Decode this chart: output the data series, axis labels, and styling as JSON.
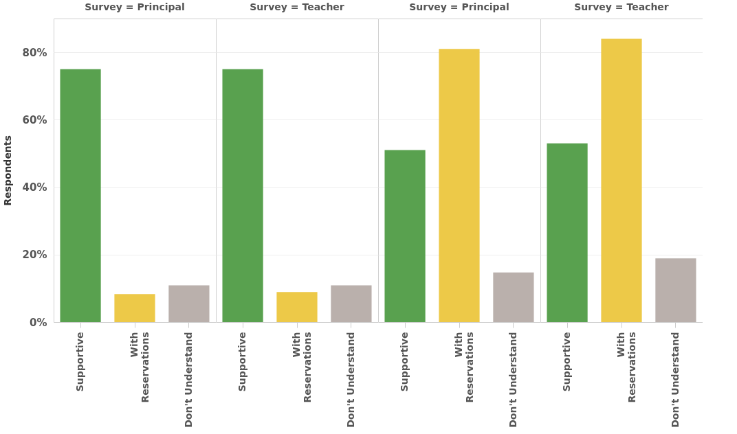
{
  "chart_data": [
    {
      "type": "bar",
      "title": "Survey = Principal",
      "ylabel": "Respondents",
      "categories": [
        "Supportive",
        "With\nReservations",
        "Don't Understand"
      ],
      "values": [
        75,
        8.3,
        10.9
      ],
      "colors": [
        "#59a14f",
        "#edc948",
        "#bab0ac"
      ],
      "ylim": [
        0,
        90
      ],
      "yticks": [
        {
          "value": 0,
          "label": "0%"
        },
        {
          "value": 20,
          "label": "20%"
        },
        {
          "value": 40,
          "label": "40%"
        },
        {
          "value": 60,
          "label": "60%"
        },
        {
          "value": 80,
          "label": "80%"
        }
      ],
      "grid": "y"
    },
    {
      "type": "bar",
      "title": "Survey = Teacher",
      "categories": [
        "Supportive",
        "With\nReservations",
        "Don't Understand"
      ],
      "values": [
        75,
        8.9,
        10.9
      ],
      "colors": [
        "#59a14f",
        "#edc948",
        "#bab0ac"
      ],
      "ylim": [
        0,
        90
      ],
      "yticks": [
        {
          "value": 0,
          "label": null
        },
        {
          "value": 20,
          "label": null
        },
        {
          "value": 40,
          "label": null
        },
        {
          "value": 60,
          "label": null
        },
        {
          "value": 80,
          "label": null
        }
      ],
      "grid": "y",
      "tick_labels": "x"
    },
    {
      "type": "bar",
      "title": "Survey = Principal",
      "categories": [
        "Supportive",
        "With\nReservations",
        "Don't Understand"
      ],
      "values": [
        51,
        81,
        14.7
      ],
      "colors": [
        "#59a14f",
        "#edc948",
        "#bab0ac"
      ],
      "ylim": [
        0,
        90
      ],
      "yticks": [
        {
          "value": 0,
          "label": null
        },
        {
          "value": 20,
          "label": null
        },
        {
          "value": 40,
          "label": null
        },
        {
          "value": 60,
          "label": null
        },
        {
          "value": 80,
          "label": null
        }
      ],
      "grid": "y",
      "tick_labels": "x"
    },
    {
      "type": "bar",
      "title": "Survey = Teacher",
      "categories": [
        "Supportive",
        "With\nReservations",
        "Don't Understand"
      ],
      "values": [
        53,
        84,
        18.9
      ],
      "colors": [
        "#59a14f",
        "#edc948",
        "#bab0ac"
      ],
      "ylim": [
        0,
        90
      ],
      "yticks": [
        {
          "value": 0,
          "label": null
        },
        {
          "value": 20,
          "label": null
        },
        {
          "value": 40,
          "label": null
        },
        {
          "value": 60,
          "label": null
        },
        {
          "value": 80,
          "label": null
        }
      ],
      "grid": "y",
      "tick_labels": "x"
    }
  ]
}
